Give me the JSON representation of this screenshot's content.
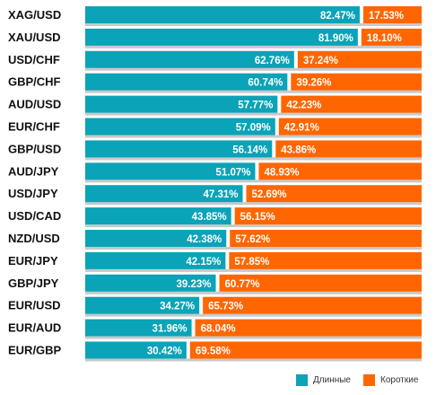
{
  "chart_data": {
    "type": "bar",
    "stacked": true,
    "orientation": "horizontal",
    "categories": [
      "XAG/USD",
      "XAU/USD",
      "USD/CHF",
      "GBP/CHF",
      "AUD/USD",
      "EUR/CHF",
      "GBP/USD",
      "AUD/JPY",
      "USD/JPY",
      "USD/CAD",
      "NZD/USD",
      "EUR/JPY",
      "GBP/JPY",
      "EUR/USD",
      "EUR/AUD",
      "EUR/GBP"
    ],
    "series": [
      {
        "name": "Длинные",
        "color": "#0ba3b8",
        "values": [
          82.47,
          81.9,
          62.76,
          60.74,
          57.77,
          57.09,
          56.14,
          51.07,
          47.31,
          43.85,
          42.38,
          42.15,
          39.23,
          34.27,
          31.96,
          30.42
        ],
        "labels": [
          "82.47%",
          "81.90%",
          "62.76%",
          "60.74%",
          "57.77%",
          "57.09%",
          "56.14%",
          "51.07%",
          "47.31%",
          "43.85%",
          "42.38%",
          "42.15%",
          "39.23%",
          "34.27%",
          "31.96%",
          "30.42%"
        ]
      },
      {
        "name": "Короткие",
        "color": "#ff6600",
        "values": [
          17.53,
          18.1,
          37.24,
          39.26,
          42.23,
          42.91,
          43.86,
          48.93,
          52.69,
          56.15,
          57.62,
          57.85,
          60.77,
          65.73,
          68.04,
          69.58
        ],
        "labels": [
          "17.53%",
          "18.10%",
          "37.24%",
          "39.26%",
          "42.23%",
          "42.91%",
          "43.86%",
          "48.93%",
          "52.69%",
          "56.15%",
          "57.62%",
          "57.85%",
          "60.77%",
          "65.73%",
          "68.04%",
          "69.58%"
        ]
      }
    ],
    "xlim": [
      0,
      100
    ],
    "legend_position": "bottom-right",
    "grid": false
  },
  "legend": {
    "long_label": "Длинные",
    "short_label": "Короткие"
  }
}
